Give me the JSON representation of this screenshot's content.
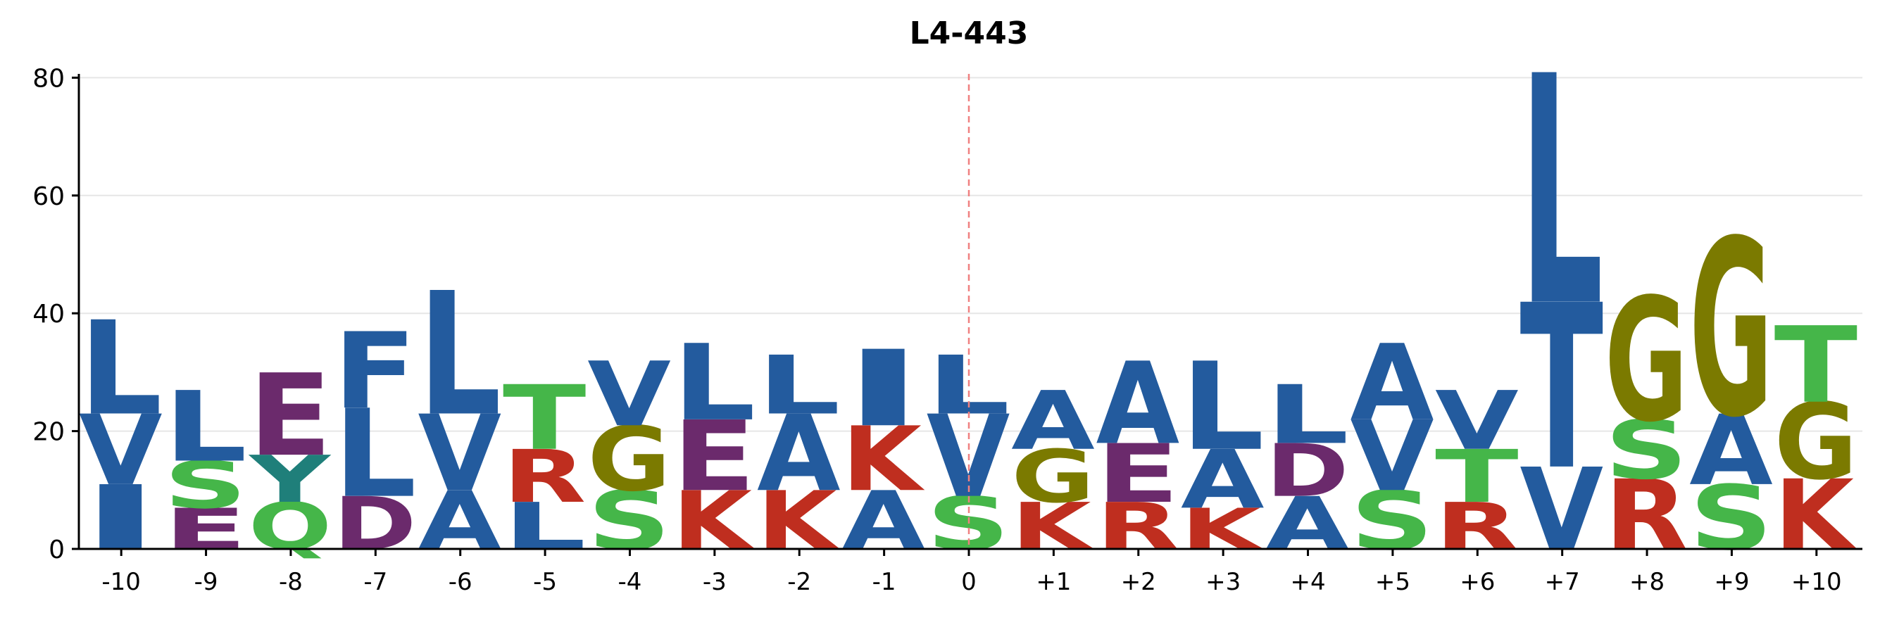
{
  "chart_data": {
    "type": "sequence-logo",
    "title": "L4-443",
    "xlabel": "",
    "ylabel": "",
    "ylim": [
      0,
      81
    ],
    "yticks": [
      0,
      20,
      40,
      60,
      80
    ],
    "grid": "horizontal",
    "reference_line_at": "0",
    "reference_line_color": "#f08080",
    "colors": {
      "blue": "#235b9e",
      "purple": "#6b2a6c",
      "teal": "#1f7f7a",
      "green": "#45b649",
      "red": "#bf2e1f",
      "olive": "#7b7a00"
    },
    "positions": [
      {
        "label": "-10",
        "stack": [
          {
            "letter": "I",
            "height": 11,
            "color": "#235b9e"
          },
          {
            "letter": "V",
            "height": 12,
            "color": "#235b9e"
          },
          {
            "letter": "L",
            "height": 16,
            "color": "#235b9e"
          }
        ]
      },
      {
        "label": "-9",
        "stack": [
          {
            "letter": "E",
            "height": 7,
            "color": "#6b2a6c"
          },
          {
            "letter": "S",
            "height": 8,
            "color": "#45b649"
          },
          {
            "letter": "L",
            "height": 12,
            "color": "#235b9e"
          }
        ]
      },
      {
        "label": "-8",
        "stack": [
          {
            "letter": "Q",
            "height": 8,
            "color": "#45b649"
          },
          {
            "letter": "Y",
            "height": 8,
            "color": "#1f7f7a"
          },
          {
            "letter": "E",
            "height": 14,
            "color": "#6b2a6c"
          }
        ]
      },
      {
        "label": "-7",
        "stack": [
          {
            "letter": "D",
            "height": 9,
            "color": "#6b2a6c"
          },
          {
            "letter": "L",
            "height": 15,
            "color": "#235b9e"
          },
          {
            "letter": "F",
            "height": 13,
            "color": "#235b9e"
          }
        ]
      },
      {
        "label": "-6",
        "stack": [
          {
            "letter": "A",
            "height": 10,
            "color": "#235b9e"
          },
          {
            "letter": "V",
            "height": 13,
            "color": "#235b9e"
          },
          {
            "letter": "L",
            "height": 21,
            "color": "#235b9e"
          }
        ]
      },
      {
        "label": "-5",
        "stack": [
          {
            "letter": "L",
            "height": 8,
            "color": "#235b9e"
          },
          {
            "letter": "R",
            "height": 9,
            "color": "#bf2e1f"
          },
          {
            "letter": "T",
            "height": 11,
            "color": "#45b649"
          }
        ]
      },
      {
        "label": "-4",
        "stack": [
          {
            "letter": "S",
            "height": 10,
            "color": "#45b649"
          },
          {
            "letter": "G",
            "height": 11,
            "color": "#7b7a00"
          },
          {
            "letter": "V",
            "height": 11,
            "color": "#235b9e"
          }
        ]
      },
      {
        "label": "-3",
        "stack": [
          {
            "letter": "K",
            "height": 10,
            "color": "#bf2e1f"
          },
          {
            "letter": "E",
            "height": 12,
            "color": "#6b2a6c"
          },
          {
            "letter": "L",
            "height": 13,
            "color": "#235b9e"
          }
        ]
      },
      {
        "label": "-2",
        "stack": [
          {
            "letter": "K",
            "height": 10,
            "color": "#bf2e1f"
          },
          {
            "letter": "A",
            "height": 13,
            "color": "#235b9e"
          },
          {
            "letter": "L",
            "height": 10,
            "color": "#235b9e"
          }
        ]
      },
      {
        "label": "-1",
        "stack": [
          {
            "letter": "A",
            "height": 10,
            "color": "#235b9e"
          },
          {
            "letter": "K",
            "height": 11,
            "color": "#bf2e1f"
          },
          {
            "letter": "I",
            "height": 13,
            "color": "#235b9e"
          }
        ]
      },
      {
        "label": "0",
        "stack": [
          {
            "letter": "S",
            "height": 9,
            "color": "#45b649"
          },
          {
            "letter": "V",
            "height": 14,
            "color": "#235b9e"
          },
          {
            "letter": "L",
            "height": 10,
            "color": "#235b9e"
          }
        ]
      },
      {
        "label": "+1",
        "stack": [
          {
            "letter": "K",
            "height": 8,
            "color": "#bf2e1f"
          },
          {
            "letter": "G",
            "height": 9,
            "color": "#7b7a00"
          },
          {
            "letter": "A",
            "height": 10,
            "color": "#235b9e"
          }
        ]
      },
      {
        "label": "+2",
        "stack": [
          {
            "letter": "R",
            "height": 8,
            "color": "#bf2e1f"
          },
          {
            "letter": "E",
            "height": 10,
            "color": "#6b2a6c"
          },
          {
            "letter": "A",
            "height": 14,
            "color": "#235b9e"
          }
        ]
      },
      {
        "label": "+3",
        "stack": [
          {
            "letter": "K",
            "height": 7,
            "color": "#bf2e1f"
          },
          {
            "letter": "A",
            "height": 10,
            "color": "#235b9e"
          },
          {
            "letter": "L",
            "height": 15,
            "color": "#235b9e"
          }
        ]
      },
      {
        "label": "+4",
        "stack": [
          {
            "letter": "A",
            "height": 9,
            "color": "#235b9e"
          },
          {
            "letter": "D",
            "height": 9,
            "color": "#6b2a6c"
          },
          {
            "letter": "L",
            "height": 10,
            "color": "#235b9e"
          }
        ]
      },
      {
        "label": "+5",
        "stack": [
          {
            "letter": "S",
            "height": 10,
            "color": "#45b649"
          },
          {
            "letter": "V",
            "height": 12,
            "color": "#235b9e"
          },
          {
            "letter": "A",
            "height": 13,
            "color": "#235b9e"
          }
        ]
      },
      {
        "label": "+6",
        "stack": [
          {
            "letter": "R",
            "height": 8,
            "color": "#bf2e1f"
          },
          {
            "letter": "T",
            "height": 9,
            "color": "#45b649"
          },
          {
            "letter": "V",
            "height": 10,
            "color": "#235b9e"
          }
        ]
      },
      {
        "label": "+7",
        "stack": [
          {
            "letter": "V",
            "height": 14,
            "color": "#235b9e"
          },
          {
            "letter": "T",
            "height": 28,
            "color": "#235b9e"
          },
          {
            "letter": "L",
            "height": 39,
            "color": "#235b9e"
          }
        ]
      },
      {
        "label": "+8",
        "stack": [
          {
            "letter": "R",
            "height": 12,
            "color": "#bf2e1f"
          },
          {
            "letter": "S",
            "height": 10,
            "color": "#45b649"
          },
          {
            "letter": "G",
            "height": 21,
            "color": "#7b7a00"
          }
        ]
      },
      {
        "label": "+9",
        "stack": [
          {
            "letter": "S",
            "height": 11,
            "color": "#45b649"
          },
          {
            "letter": "A",
            "height": 12,
            "color": "#235b9e"
          },
          {
            "letter": "G",
            "height": 30,
            "color": "#7b7a00"
          }
        ]
      },
      {
        "label": "+10",
        "stack": [
          {
            "letter": "K",
            "height": 12,
            "color": "#bf2e1f"
          },
          {
            "letter": "G",
            "height": 13,
            "color": "#7b7a00"
          },
          {
            "letter": "T",
            "height": 13,
            "color": "#45b649"
          }
        ]
      }
    ]
  }
}
